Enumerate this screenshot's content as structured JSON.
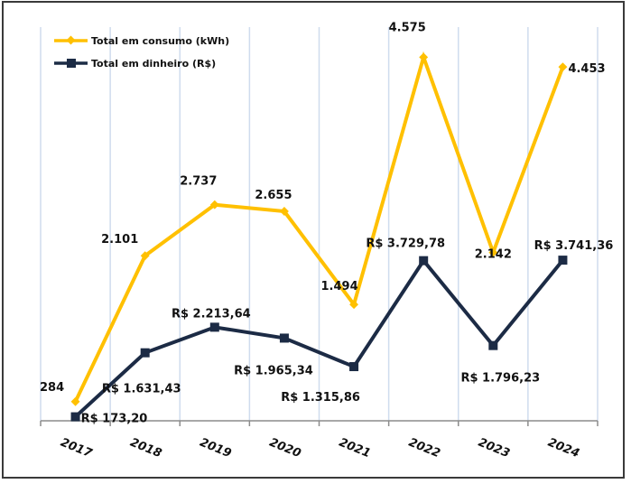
{
  "chart_data": {
    "type": "line",
    "title": "",
    "xlabel": "",
    "ylabel": "",
    "categories": [
      "2017",
      "2018",
      "2019",
      "2020",
      "2021",
      "2022",
      "2023",
      "2024"
    ],
    "grid": "vertical",
    "legend_position": "top-left",
    "series": [
      {
        "name": "Total em consumo (kWh)",
        "color": "#FFC000",
        "marker": "diamond",
        "axis": "primary",
        "ylim": [
          0,
          4950
        ],
        "values": [
          284,
          2101,
          2737,
          2655,
          1494,
          4575,
          2142,
          4453
        ],
        "labels": [
          "284",
          "2.101",
          "2.737",
          "2.655",
          "1.494",
          "4.575",
          "2.142",
          "4.453"
        ]
      },
      {
        "name": "Total em dinheiro (R$)",
        "color": "#1C2B45",
        "marker": "square",
        "axis": "secondary",
        "ylim": [
          0,
          9050
        ],
        "values": [
          173.2,
          1631.43,
          2213.64,
          1965.34,
          1315.86,
          3729.78,
          1796.23,
          3741.36
        ],
        "labels": [
          "R$ 173,20",
          "R$ 1.631,43",
          "R$ 2.213,64",
          "R$ 1.965,34",
          "R$ 1.315,86",
          "R$ 3.729,78",
          "R$ 1.796,23",
          "R$ 3.741,36"
        ]
      }
    ]
  }
}
